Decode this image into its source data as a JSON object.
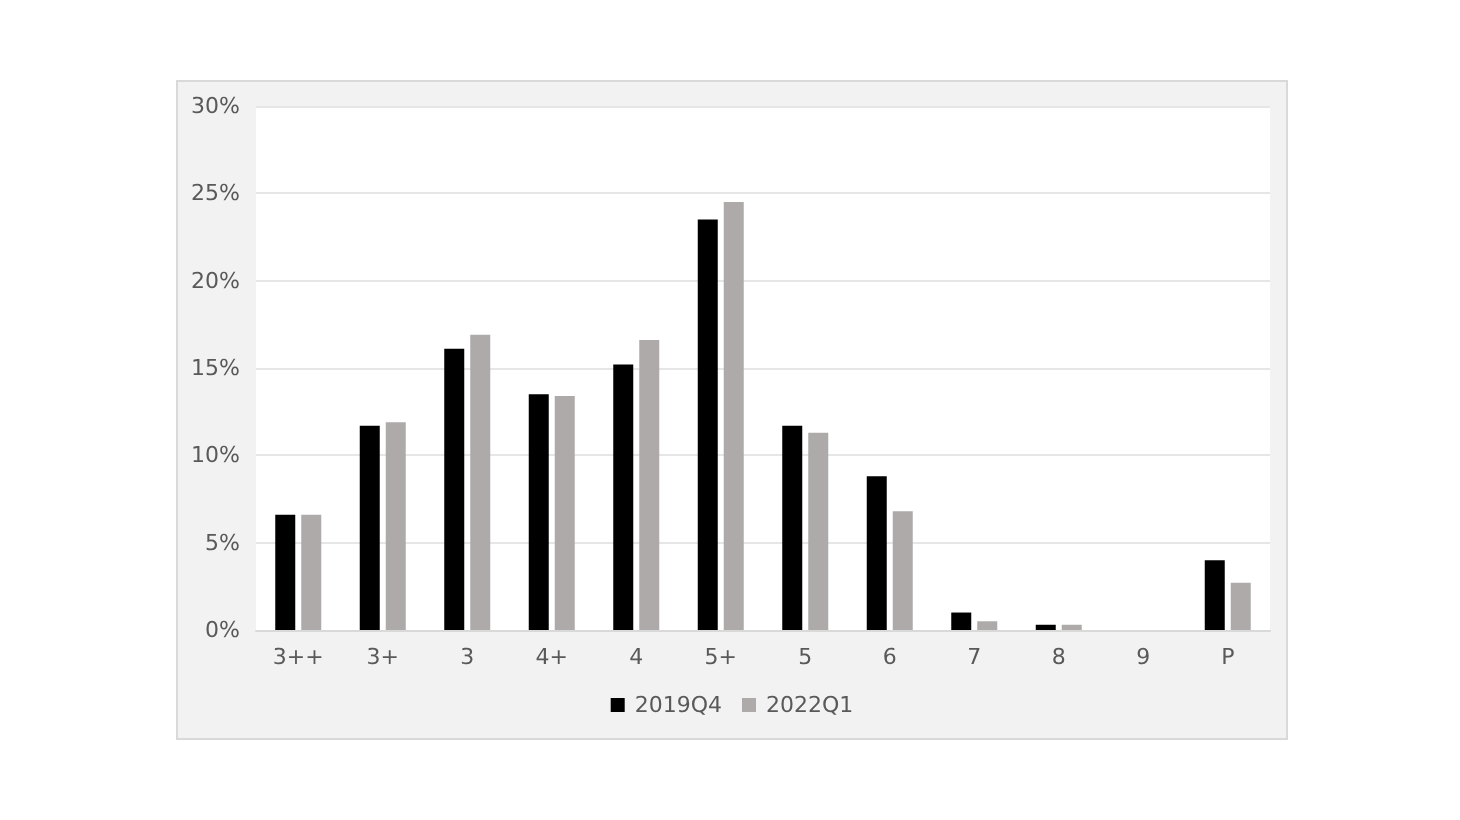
{
  "chart_data": {
    "type": "bar",
    "categories": [
      "3++",
      "3+",
      "3",
      "4+",
      "4",
      "5+",
      "5",
      "6",
      "7",
      "8",
      "9",
      "P"
    ],
    "series": [
      {
        "name": "2019Q4",
        "color": "#000000",
        "values": [
          6.6,
          11.7,
          16.1,
          13.5,
          15.2,
          23.5,
          11.7,
          8.8,
          1.0,
          0.3,
          0,
          4.0
        ]
      },
      {
        "name": "2022Q1",
        "color": "#aeaaaa",
        "values": [
          6.6,
          11.9,
          16.9,
          13.4,
          16.6,
          24.5,
          11.3,
          6.8,
          0.5,
          0.3,
          0,
          2.7
        ]
      }
    ],
    "ylim": [
      0,
      30
    ],
    "yticks": [
      {
        "value": 0,
        "label": "0%"
      },
      {
        "value": 5,
        "label": "5%"
      },
      {
        "value": 10,
        "label": "10%"
      },
      {
        "value": 15,
        "label": "15%"
      },
      {
        "value": 20,
        "label": "20%"
      },
      {
        "value": 25,
        "label": "25%"
      },
      {
        "value": 30,
        "label": "30%"
      }
    ],
    "grid": "y",
    "legend": "bottom"
  }
}
